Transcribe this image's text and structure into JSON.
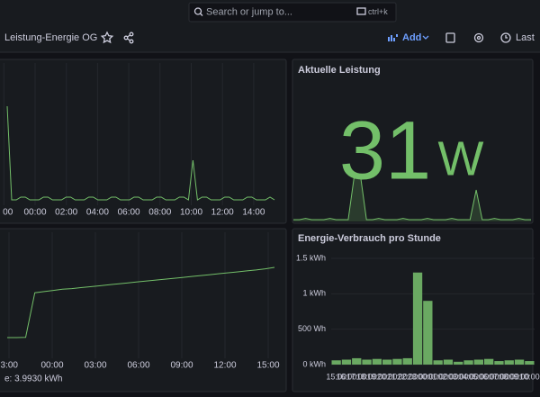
{
  "topbar": {
    "search": "Search or jump to...",
    "shortcut": "ctrl+k"
  },
  "toolbar": {
    "title": "Leistung-Energie OG",
    "add": "Add",
    "time_range": "Last"
  },
  "panels": [
    {
      "type": "line",
      "x_labels": [
        "00",
        "00:00",
        "02:00",
        "04:00",
        "06:00",
        "08:00",
        "10:00",
        "12:00",
        "14:00"
      ],
      "values": [
        520,
        28,
        28,
        42,
        42,
        28,
        28,
        28,
        42,
        42,
        28,
        28,
        28,
        42,
        42,
        28,
        28,
        28,
        42,
        42,
        28,
        28,
        28,
        42,
        42,
        28,
        28,
        28,
        42,
        42,
        28,
        28,
        28,
        42,
        42,
        28,
        28,
        28,
        42,
        42,
        28,
        236,
        28,
        42,
        42,
        28,
        28,
        28,
        42,
        42,
        28,
        28,
        28,
        42,
        42,
        28,
        28,
        28,
        42,
        28
      ],
      "color": "#73bf69"
    },
    {
      "type": "stat",
      "title": "Aktuelle Leistung",
      "value": 31,
      "unit": "W",
      "sparkline": [
        15,
        15,
        22,
        15,
        15,
        15,
        22,
        15,
        15,
        15,
        260,
        260,
        15,
        15,
        22,
        15,
        15,
        15,
        22,
        15,
        15,
        15,
        22,
        15,
        15,
        15,
        22,
        15,
        15,
        15,
        180,
        15,
        15,
        22,
        15,
        15,
        15,
        22,
        15,
        15
      ],
      "color": "#73bf69"
    },
    {
      "type": "line",
      "x_labels": [
        "3:00",
        "00:00",
        "03:00",
        "06:00",
        "09:00",
        "12:00",
        "15:00"
      ],
      "values": [
        0.97,
        0.97,
        0.98,
        2.9,
        2.95,
        3.0,
        3.05,
        3.08,
        3.12,
        3.16,
        3.2,
        3.24,
        3.28,
        3.32,
        3.36,
        3.4,
        3.44,
        3.48,
        3.52,
        3.56,
        3.6,
        3.64,
        3.68,
        3.72,
        3.76,
        3.8,
        3.84,
        3.88,
        3.93,
        3.993
      ],
      "legend": "e: 3.9930 kWh",
      "color": "#73bf69"
    },
    {
      "type": "bar",
      "title": "Energie-Verbrauch pro Stunde",
      "categories": [
        "15:00",
        "16:00",
        "17:00",
        "18:00",
        "19:00",
        "20:00",
        "21:00",
        "22:00",
        "23:00",
        "00:00",
        "01:00",
        "02:00",
        "03:00",
        "04:00",
        "05:00",
        "06:00",
        "07:00",
        "08:00",
        "09:00",
        "10:00"
      ],
      "values": [
        0.06,
        0.07,
        0.09,
        0.07,
        0.08,
        0.07,
        0.08,
        0.09,
        1.3,
        0.9,
        0.06,
        0.07,
        0.04,
        0.06,
        0.07,
        0.08,
        0.05,
        0.06,
        0.07,
        0.05
      ],
      "ylim": [
        0,
        1.5
      ],
      "yticks": [
        {
          "value": 0,
          "label": "0 kWh"
        },
        {
          "value": 0.5,
          "label": "500 Wh"
        },
        {
          "value": 1,
          "label": "1 kWh"
        },
        {
          "value": 1.5,
          "label": "1.5 kWh"
        }
      ],
      "color": "#6aa962"
    }
  ]
}
